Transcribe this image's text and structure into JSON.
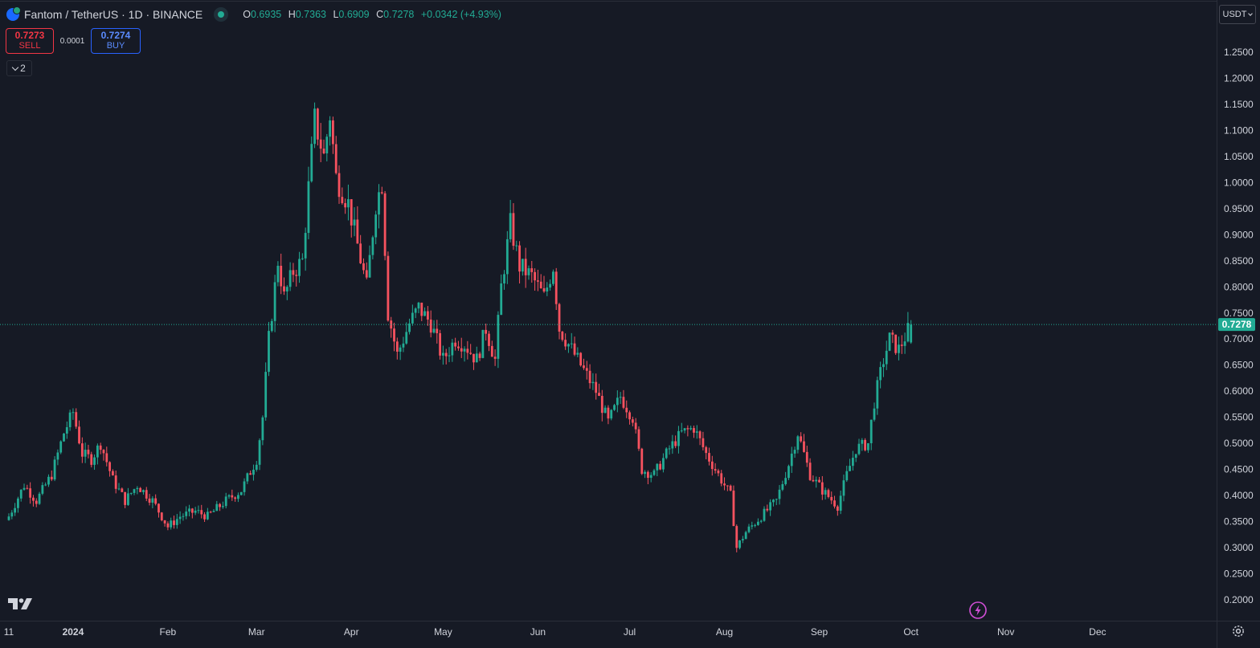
{
  "header": {
    "title": "Fantom / TetherUS · 1D · BINANCE",
    "ohlc": {
      "o_key": "O",
      "o": "0.6935",
      "h_key": "H",
      "h": "0.7363",
      "l_key": "L",
      "l": "0.6909",
      "c_key": "C",
      "c": "0.7278",
      "change": "+0.0342 (+4.93%)"
    },
    "status_icon": "market-open-dot-icon",
    "symbol_icon": "fantom-coin-icon"
  },
  "trade": {
    "sell_price": "0.7273",
    "sell_label": "SELL",
    "spread": "0.0001",
    "buy_price": "0.7274",
    "buy_label": "BUY"
  },
  "indicators_toggle": {
    "count": "2",
    "icon": "chevron-down-icon"
  },
  "currency_selector": {
    "label": "USDT"
  },
  "price_scale": {
    "ticks": [
      "1.2500",
      "1.2000",
      "1.1500",
      "1.1000",
      "1.0500",
      "1.0000",
      "0.9500",
      "0.9000",
      "0.8500",
      "0.8000",
      "0.7500",
      "0.7000",
      "0.6500",
      "0.6000",
      "0.5500",
      "0.5000",
      "0.4500",
      "0.4000",
      "0.3500",
      "0.3000",
      "0.2500",
      "0.2000"
    ],
    "last_price_label": "0.7278"
  },
  "time_scale": {
    "labels": [
      "11",
      "2024",
      "Feb",
      "Mar",
      "Apr",
      "May",
      "Jun",
      "Jul",
      "Aug",
      "Sep",
      "Oct",
      "Nov",
      "Dec"
    ]
  },
  "icons": {
    "logo": "tradingview-logo-icon",
    "bolt": "lightning-bolt-icon",
    "settings": "gear-icon"
  },
  "colors": {
    "background": "#161a25",
    "up": "#22ab94",
    "down": "#f7525f",
    "sell": "#f23645",
    "buy": "#2962ff",
    "axis_text": "#d1d4dc",
    "last_price_line": "#22ab94"
  },
  "chart_data": {
    "type": "candlestick",
    "title": "",
    "xlabel": "",
    "ylabel": "",
    "ylim": [
      0.18,
      1.28
    ],
    "x_range": [
      "2023-12-11",
      "2024-12-31"
    ],
    "last_price": 0.7278,
    "grid": false,
    "anchors": [
      {
        "date": "2023-12-11",
        "close": 0.36
      },
      {
        "date": "2023-12-16",
        "close": 0.42
      },
      {
        "date": "2023-12-20",
        "close": 0.39
      },
      {
        "date": "2023-12-25",
        "close": 0.44
      },
      {
        "date": "2023-12-29",
        "close": 0.52
      },
      {
        "date": "2024-01-01",
        "close": 0.56
      },
      {
        "date": "2024-01-04",
        "close": 0.48
      },
      {
        "date": "2024-01-07",
        "close": 0.47
      },
      {
        "date": "2024-01-10",
        "close": 0.5
      },
      {
        "date": "2024-01-14",
        "close": 0.43
      },
      {
        "date": "2024-01-18",
        "close": 0.39
      },
      {
        "date": "2024-01-22",
        "close": 0.42
      },
      {
        "date": "2024-01-27",
        "close": 0.39
      },
      {
        "date": "2024-02-01",
        "close": 0.34
      },
      {
        "date": "2024-02-05",
        "close": 0.36
      },
      {
        "date": "2024-02-10",
        "close": 0.37
      },
      {
        "date": "2024-02-14",
        "close": 0.36
      },
      {
        "date": "2024-02-20",
        "close": 0.39
      },
      {
        "date": "2024-02-25",
        "close": 0.41
      },
      {
        "date": "2024-03-01",
        "close": 0.47
      },
      {
        "date": "2024-03-03",
        "close": 0.55
      },
      {
        "date": "2024-03-05",
        "close": 0.7
      },
      {
        "date": "2024-03-08",
        "close": 0.85
      },
      {
        "date": "2024-03-10",
        "close": 0.78
      },
      {
        "date": "2024-03-13",
        "close": 0.83
      },
      {
        "date": "2024-03-16",
        "close": 0.85
      },
      {
        "date": "2024-03-18",
        "close": 0.99
      },
      {
        "date": "2024-03-20",
        "close": 1.12
      },
      {
        "date": "2024-03-23",
        "close": 1.05
      },
      {
        "date": "2024-03-25",
        "close": 1.13
      },
      {
        "date": "2024-03-27",
        "close": 1.01
      },
      {
        "date": "2024-03-31",
        "close": 0.96
      },
      {
        "date": "2024-04-03",
        "close": 0.88
      },
      {
        "date": "2024-04-06",
        "close": 0.8
      },
      {
        "date": "2024-04-09",
        "close": 0.96
      },
      {
        "date": "2024-04-11",
        "close": 1.0
      },
      {
        "date": "2024-04-13",
        "close": 0.75
      },
      {
        "date": "2024-04-16",
        "close": 0.67
      },
      {
        "date": "2024-04-20",
        "close": 0.73
      },
      {
        "date": "2024-04-23",
        "close": 0.76
      },
      {
        "date": "2024-04-27",
        "close": 0.73
      },
      {
        "date": "2024-05-01",
        "close": 0.66
      },
      {
        "date": "2024-05-05",
        "close": 0.7
      },
      {
        "date": "2024-05-08",
        "close": 0.69
      },
      {
        "date": "2024-05-12",
        "close": 0.66
      },
      {
        "date": "2024-05-15",
        "close": 0.72
      },
      {
        "date": "2024-05-18",
        "close": 0.66
      },
      {
        "date": "2024-05-20",
        "close": 0.8
      },
      {
        "date": "2024-05-23",
        "close": 0.92
      },
      {
        "date": "2024-05-26",
        "close": 0.84
      },
      {
        "date": "2024-05-30",
        "close": 0.82
      },
      {
        "date": "2024-06-03",
        "close": 0.78
      },
      {
        "date": "2024-06-06",
        "close": 0.84
      },
      {
        "date": "2024-06-08",
        "close": 0.72
      },
      {
        "date": "2024-06-12",
        "close": 0.68
      },
      {
        "date": "2024-06-16",
        "close": 0.64
      },
      {
        "date": "2024-06-20",
        "close": 0.6
      },
      {
        "date": "2024-06-24",
        "close": 0.54
      },
      {
        "date": "2024-06-28",
        "close": 0.59
      },
      {
        "date": "2024-07-02",
        "close": 0.55
      },
      {
        "date": "2024-07-05",
        "close": 0.45
      },
      {
        "date": "2024-07-09",
        "close": 0.44
      },
      {
        "date": "2024-07-14",
        "close": 0.49
      },
      {
        "date": "2024-07-18",
        "close": 0.52
      },
      {
        "date": "2024-07-22",
        "close": 0.53
      },
      {
        "date": "2024-07-26",
        "close": 0.48
      },
      {
        "date": "2024-07-30",
        "close": 0.44
      },
      {
        "date": "2024-08-03",
        "close": 0.4
      },
      {
        "date": "2024-08-05",
        "close": 0.3
      },
      {
        "date": "2024-08-08",
        "close": 0.33
      },
      {
        "date": "2024-08-13",
        "close": 0.36
      },
      {
        "date": "2024-08-18",
        "close": 0.39
      },
      {
        "date": "2024-08-22",
        "close": 0.46
      },
      {
        "date": "2024-08-25",
        "close": 0.52
      },
      {
        "date": "2024-08-29",
        "close": 0.44
      },
      {
        "date": "2024-09-02",
        "close": 0.41
      },
      {
        "date": "2024-09-07",
        "close": 0.38
      },
      {
        "date": "2024-09-10",
        "close": 0.44
      },
      {
        "date": "2024-09-13",
        "close": 0.49
      },
      {
        "date": "2024-09-17",
        "close": 0.5
      },
      {
        "date": "2024-09-19",
        "close": 0.58
      },
      {
        "date": "2024-09-22",
        "close": 0.66
      },
      {
        "date": "2024-09-24",
        "close": 0.7
      },
      {
        "date": "2024-09-27",
        "close": 0.68
      },
      {
        "date": "2024-10-01",
        "close": 0.7278
      }
    ]
  }
}
